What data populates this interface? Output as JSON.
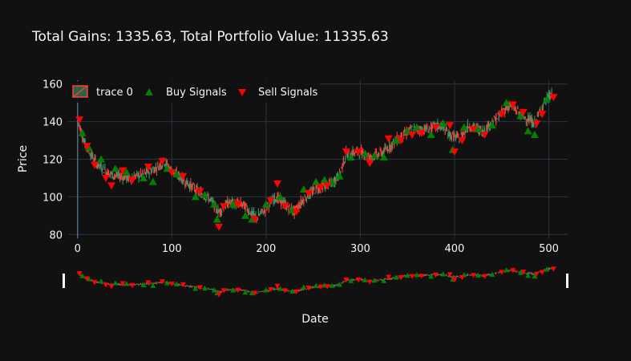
{
  "chart_data": {
    "type": "candlestick",
    "title": "Total Gains: 1335.63, Total Portfolio Value: 11335.63",
    "xlabel": "Date",
    "ylabel": "Price",
    "xlim": [
      -10,
      520
    ],
    "ylim": [
      78,
      162
    ],
    "x_ticks": [
      0,
      100,
      200,
      300,
      400,
      500
    ],
    "y_ticks": [
      80,
      100,
      120,
      140,
      160
    ],
    "grid": true,
    "legend_position": "top-left",
    "colors": {
      "background": "#111111",
      "grid": "#283442",
      "text": "#f2f5fa",
      "increasing": "#3d9970",
      "decreasing": "#ff4136",
      "buy": "#008000",
      "sell": "#ff0000"
    },
    "trend": [
      [
        0,
        141
      ],
      [
        8,
        128
      ],
      [
        20,
        118
      ],
      [
        35,
        112
      ],
      [
        55,
        110
      ],
      [
        70,
        112
      ],
      [
        85,
        116
      ],
      [
        92,
        119
      ],
      [
        100,
        114
      ],
      [
        110,
        110
      ],
      [
        125,
        104
      ],
      [
        140,
        99
      ],
      [
        150,
        92
      ],
      [
        160,
        97
      ],
      [
        175,
        96
      ],
      [
        190,
        89
      ],
      [
        200,
        94
      ],
      [
        210,
        100
      ],
      [
        220,
        96
      ],
      [
        230,
        92
      ],
      [
        240,
        99
      ],
      [
        255,
        105
      ],
      [
        270,
        107
      ],
      [
        278,
        112
      ],
      [
        285,
        123
      ],
      [
        300,
        124
      ],
      [
        310,
        121
      ],
      [
        325,
        124
      ],
      [
        340,
        131
      ],
      [
        355,
        136
      ],
      [
        370,
        136
      ],
      [
        385,
        138
      ],
      [
        395,
        133
      ],
      [
        405,
        131
      ],
      [
        415,
        138
      ],
      [
        430,
        135
      ],
      [
        445,
        142
      ],
      [
        458,
        149
      ],
      [
        470,
        144
      ],
      [
        485,
        139
      ],
      [
        495,
        150
      ],
      [
        503,
        155
      ]
    ],
    "series": [
      {
        "name": "trace 0",
        "kind": "candlestick"
      },
      {
        "name": "Buy Signals",
        "kind": "markers",
        "symbol": "triangle-up",
        "points": [
          [
            5,
            134
          ],
          [
            12,
            126
          ],
          [
            25,
            120
          ],
          [
            40,
            115
          ],
          [
            52,
            113
          ],
          [
            70,
            110
          ],
          [
            80,
            108
          ],
          [
            95,
            115
          ],
          [
            105,
            112
          ],
          [
            125,
            100
          ],
          [
            135,
            101
          ],
          [
            145,
            96
          ],
          [
            148,
            88
          ],
          [
            165,
            96
          ],
          [
            178,
            90
          ],
          [
            185,
            88
          ],
          [
            200,
            96
          ],
          [
            215,
            100
          ],
          [
            228,
            93
          ],
          [
            240,
            104
          ],
          [
            253,
            108
          ],
          [
            262,
            109
          ],
          [
            270,
            108
          ],
          [
            278,
            111
          ],
          [
            290,
            121
          ],
          [
            305,
            123
          ],
          [
            315,
            122
          ],
          [
            325,
            121
          ],
          [
            338,
            130
          ],
          [
            350,
            135
          ],
          [
            360,
            137
          ],
          [
            375,
            133
          ],
          [
            388,
            139
          ],
          [
            398,
            125
          ],
          [
            410,
            137
          ],
          [
            425,
            136
          ],
          [
            440,
            138
          ],
          [
            455,
            150
          ],
          [
            470,
            143
          ],
          [
            478,
            135
          ],
          [
            485,
            133
          ],
          [
            498,
            152
          ]
        ]
      },
      {
        "name": "Sell Signals",
        "kind": "markers",
        "symbol": "triangle-down",
        "points": [
          [
            2,
            141
          ],
          [
            10,
            127
          ],
          [
            18,
            117
          ],
          [
            30,
            110
          ],
          [
            36,
            106
          ],
          [
            48,
            114
          ],
          [
            58,
            109
          ],
          [
            75,
            116
          ],
          [
            90,
            119
          ],
          [
            100,
            113
          ],
          [
            112,
            111
          ],
          [
            130,
            103
          ],
          [
            150,
            84
          ],
          [
            155,
            95
          ],
          [
            170,
            96
          ],
          [
            188,
            88
          ],
          [
            205,
            98
          ],
          [
            212,
            107
          ],
          [
            220,
            95
          ],
          [
            232,
            92
          ],
          [
            245,
            102
          ],
          [
            258,
            105
          ],
          [
            265,
            106
          ],
          [
            285,
            124
          ],
          [
            298,
            124
          ],
          [
            310,
            118
          ],
          [
            330,
            131
          ],
          [
            343,
            130
          ],
          [
            355,
            133
          ],
          [
            365,
            134
          ],
          [
            380,
            137
          ],
          [
            395,
            138
          ],
          [
            400,
            124
          ],
          [
            408,
            130
          ],
          [
            420,
            136
          ],
          [
            432,
            133
          ],
          [
            450,
            144
          ],
          [
            462,
            149
          ],
          [
            473,
            145
          ],
          [
            487,
            139
          ],
          [
            493,
            144
          ],
          [
            505,
            153
          ]
        ]
      }
    ]
  }
}
